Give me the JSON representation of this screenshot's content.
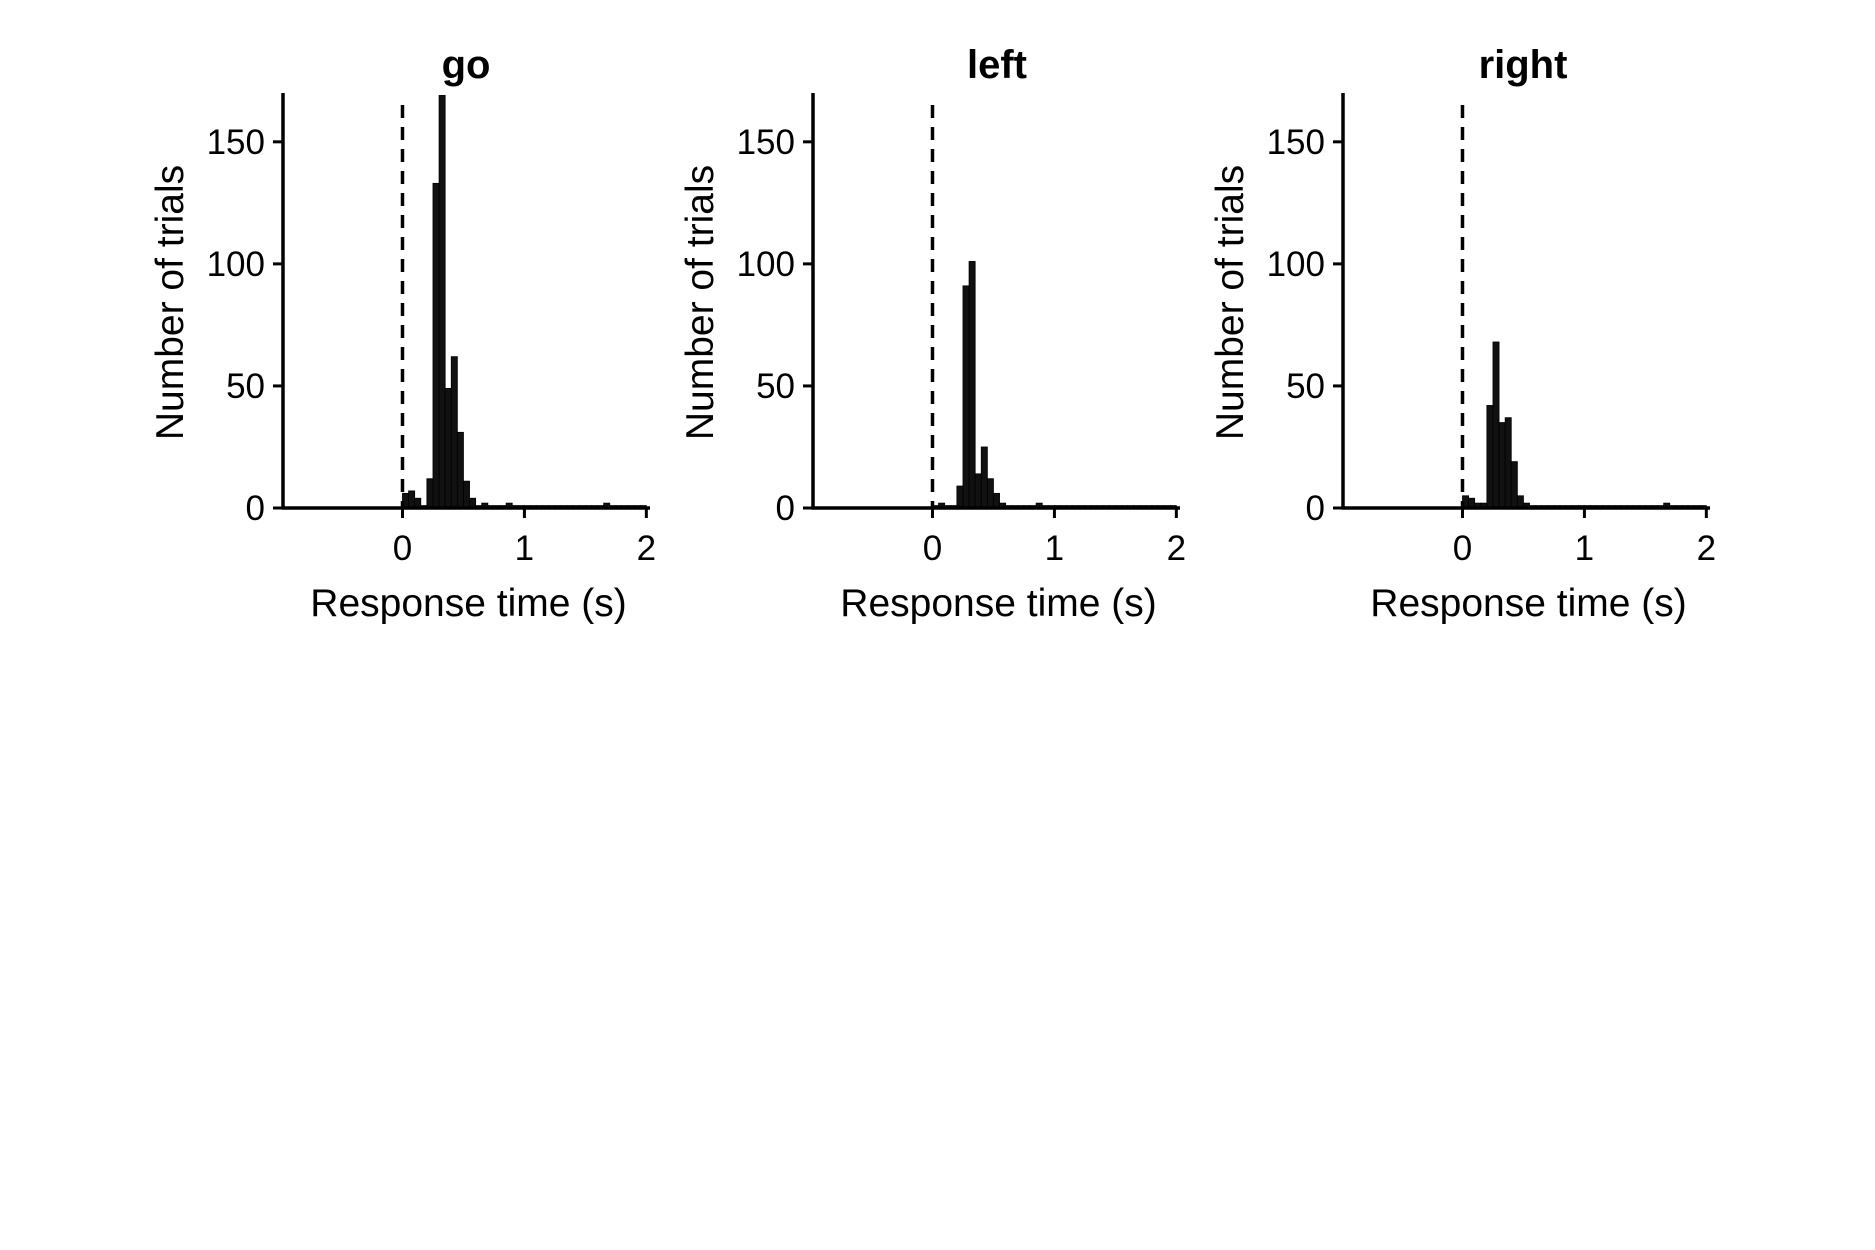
{
  "colors": {
    "background": "#ffffff",
    "bar_fill": "#111111",
    "axis": "#000000"
  },
  "chart_data": [
    {
      "type": "bar",
      "title": "go",
      "xlabel": "Response time (s)",
      "ylabel": "Number of trials",
      "xlim": [
        -0.98,
        2.03
      ],
      "ylim": [
        0,
        170
      ],
      "xticks": [
        0,
        1,
        2
      ],
      "yticks": [
        0,
        50,
        100,
        150
      ],
      "zero_line": "dashed vertical line at 0 s",
      "grid": false,
      "legend": "none",
      "bin_width": 0.05,
      "bin_starts": [
        0.0,
        0.05,
        0.1,
        0.15,
        0.2,
        0.25,
        0.3,
        0.35,
        0.4,
        0.45,
        0.5,
        0.55,
        0.6,
        0.65,
        0.7,
        0.75,
        0.8,
        0.85,
        0.9,
        0.95,
        1.0,
        1.05,
        1.1,
        1.15,
        1.2,
        1.25,
        1.3,
        1.35,
        1.4,
        1.45,
        1.5,
        1.55,
        1.6,
        1.65,
        1.7,
        1.75,
        1.8,
        1.85,
        1.9,
        1.95
      ],
      "values": [
        6,
        7,
        4,
        1,
        12,
        133,
        169,
        49,
        62,
        31,
        11,
        4,
        1,
        2,
        1,
        1,
        1,
        2,
        1,
        1,
        1,
        1,
        1,
        1,
        1,
        1,
        1,
        1,
        1,
        1,
        1,
        1,
        1,
        2,
        1,
        1,
        1,
        1,
        1,
        1
      ]
    },
    {
      "type": "bar",
      "title": "left",
      "xlabel": "Response time (s)",
      "ylabel": "Number of trials",
      "xlim": [
        -0.98,
        2.03
      ],
      "ylim": [
        0,
        170
      ],
      "xticks": [
        0,
        1,
        2
      ],
      "yticks": [
        0,
        50,
        100,
        150
      ],
      "zero_line": "dashed vertical line at 0 s",
      "grid": false,
      "legend": "none",
      "bin_width": 0.05,
      "bin_starts": [
        0.0,
        0.05,
        0.1,
        0.15,
        0.2,
        0.25,
        0.3,
        0.35,
        0.4,
        0.45,
        0.5,
        0.55,
        0.6,
        0.65,
        0.7,
        0.75,
        0.8,
        0.85,
        0.9,
        0.95,
        1.0,
        1.05,
        1.1,
        1.15,
        1.2,
        1.25,
        1.3,
        1.35,
        1.4,
        1.45,
        1.5,
        1.55,
        1.6,
        1.65,
        1.7,
        1.75,
        1.8,
        1.85,
        1.9,
        1.95
      ],
      "values": [
        1,
        2,
        1,
        1,
        9,
        91,
        101,
        14,
        25,
        12,
        6,
        2,
        1,
        1,
        1,
        1,
        1,
        2,
        1,
        1,
        1,
        1,
        1,
        1,
        1,
        1,
        1,
        1,
        1,
        1,
        1,
        1,
        1,
        1,
        1,
        1,
        1,
        1,
        1,
        1
      ]
    },
    {
      "type": "bar",
      "title": "right",
      "xlabel": "Response time (s)",
      "ylabel": "Number of trials",
      "xlim": [
        -0.98,
        2.03
      ],
      "ylim": [
        0,
        170
      ],
      "xticks": [
        0,
        1,
        2
      ],
      "yticks": [
        0,
        50,
        100,
        150
      ],
      "zero_line": "dashed vertical line at 0 s",
      "grid": false,
      "legend": "none",
      "bin_width": 0.05,
      "bin_starts": [
        0.0,
        0.05,
        0.1,
        0.15,
        0.2,
        0.25,
        0.3,
        0.35,
        0.4,
        0.45,
        0.5,
        0.55,
        0.6,
        0.65,
        0.7,
        0.75,
        0.8,
        0.85,
        0.9,
        0.95,
        1.0,
        1.05,
        1.1,
        1.15,
        1.2,
        1.25,
        1.3,
        1.35,
        1.4,
        1.45,
        1.5,
        1.55,
        1.6,
        1.65,
        1.7,
        1.75,
        1.8,
        1.85,
        1.9,
        1.95
      ],
      "values": [
        5,
        4,
        2,
        2,
        42,
        68,
        35,
        37,
        19,
        5,
        2,
        1,
        1,
        1,
        1,
        1,
        1,
        1,
        1,
        1,
        1,
        1,
        1,
        1,
        1,
        1,
        1,
        1,
        1,
        1,
        1,
        1,
        1,
        2,
        1,
        1,
        1,
        1,
        1,
        1
      ]
    }
  ]
}
